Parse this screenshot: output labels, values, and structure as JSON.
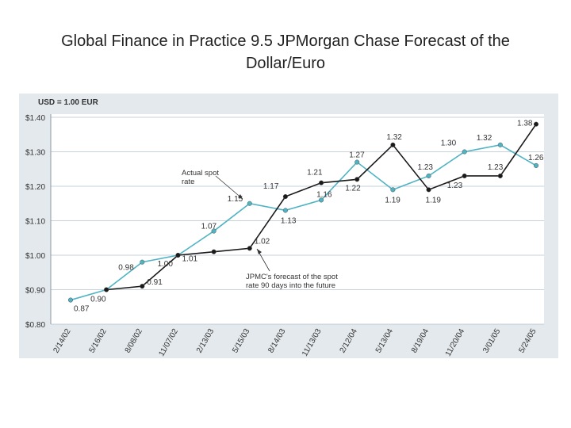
{
  "slide": {
    "title_line1": "Global Finance in Practice 9.5 JPMorgan Chase Forecast of the",
    "title_line2": "Dollar/Euro"
  },
  "chart_data": {
    "type": "line",
    "title": "Global Finance in Practice 9.5 JPMorgan Chase Forecast of the Dollar/Euro",
    "unit_label": "USD = 1.00 EUR",
    "y_ticks": [
      "$1.40",
      "$1.30",
      "$1.20",
      "$1.10",
      "$1.00",
      "$0.90",
      "$0.80"
    ],
    "ylim": [
      0.8,
      1.4
    ],
    "categories": [
      "2/14/02",
      "5/16/02",
      "8/08/02",
      "11/07/02",
      "2/13/03",
      "5/15/03",
      "8/14/03",
      "11/13/03",
      "2/12/04",
      "5/13/04",
      "8/19/04",
      "11/20/04",
      "3/01/05",
      "5/24/05"
    ],
    "series": [
      {
        "name": "Actual spot rate",
        "color": "#4fb3c4",
        "points": [
          {
            "x": 0.0,
            "y": 0.87,
            "label": "0.87"
          },
          {
            "x": 1.0,
            "y": 0.9,
            "label": ""
          },
          {
            "x": 2.0,
            "y": 0.98,
            "label": "0.98"
          },
          {
            "x": 3.0,
            "y": 1.0,
            "label": ""
          },
          {
            "x": 4.0,
            "y": 1.07,
            "label": "1.07"
          },
          {
            "x": 5.0,
            "y": 1.15,
            "label": "1.15"
          },
          {
            "x": 6.0,
            "y": 1.13,
            "label": "1.13"
          },
          {
            "x": 7.0,
            "y": 1.16,
            "label": "1.16"
          },
          {
            "x": 8.0,
            "y": 1.27,
            "label": "1.27"
          },
          {
            "x": 9.0,
            "y": 1.19,
            "label": "1.19"
          },
          {
            "x": 10.0,
            "y": 1.23,
            "label": "1.23"
          },
          {
            "x": 11.0,
            "y": 1.3,
            "label": "1.30"
          },
          {
            "x": 12.0,
            "y": 1.32,
            "label": "1.32"
          },
          {
            "x": 13.0,
            "y": 1.26,
            "label": "1.26"
          }
        ]
      },
      {
        "name": "JPMC's forecast of the spot rate 90 days into the future",
        "color": "#1a1a1a",
        "points": [
          {
            "x": 1.0,
            "y": 0.9,
            "label": "0.90"
          },
          {
            "x": 2.0,
            "y": 0.91,
            "label": "0.91"
          },
          {
            "x": 3.0,
            "y": 1.0,
            "label": "1.00"
          },
          {
            "x": 4.0,
            "y": 1.01,
            "label": "1.01"
          },
          {
            "x": 5.0,
            "y": 1.02,
            "label": "1.02"
          },
          {
            "x": 6.0,
            "y": 1.17,
            "label": "1.17"
          },
          {
            "x": 7.0,
            "y": 1.21,
            "label": "1.21"
          },
          {
            "x": 8.0,
            "y": 1.22,
            "label": "1.22"
          },
          {
            "x": 9.0,
            "y": 1.32,
            "label": "1.32"
          },
          {
            "x": 10.0,
            "y": 1.19,
            "label": "1.19"
          },
          {
            "x": 11.0,
            "y": 1.23,
            "label": "1.23"
          },
          {
            "x": 12.0,
            "y": 1.23,
            "label": "1.23"
          },
          {
            "x": 13.0,
            "y": 1.38,
            "label": "1.38"
          }
        ]
      }
    ],
    "annotations": [
      {
        "target": "Actual spot rate",
        "lines": [
          "Actual spot",
          "rate"
        ]
      },
      {
        "target": "JPMC forecast",
        "lines": [
          "JPMC's forecast of the spot",
          "rate 90 days into the future"
        ]
      }
    ]
  }
}
